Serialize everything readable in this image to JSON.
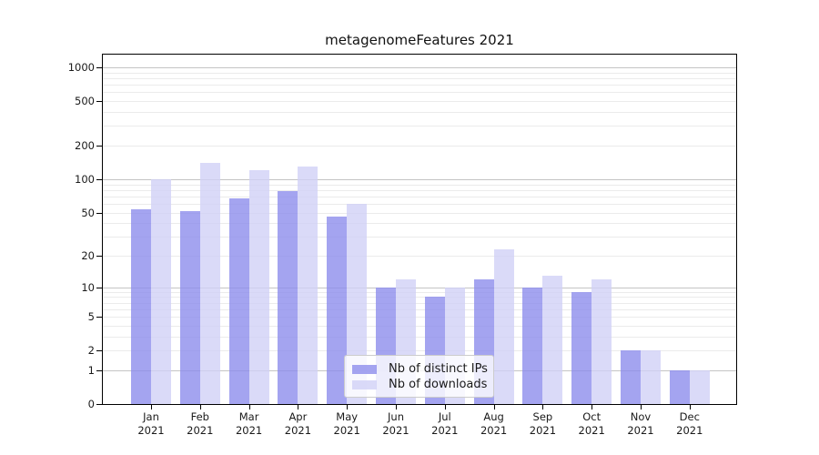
{
  "title": "metagenomeFeatures 2021",
  "chart_data": {
    "type": "bar",
    "title": "metagenomeFeatures 2021",
    "categories": [
      "Jan 2021",
      "Feb 2021",
      "Mar 2021",
      "Apr 2021",
      "May 2021",
      "Jun 2021",
      "Jul 2021",
      "Aug 2021",
      "Sep 2021",
      "Oct 2021",
      "Nov 2021",
      "Dec 2021"
    ],
    "series": [
      {
        "name": "Nb of distinct IPs",
        "color": "#a4a4ec",
        "values": [
          53,
          51,
          67,
          78,
          46,
          10,
          8,
          12,
          10,
          9,
          2,
          1
        ]
      },
      {
        "name": "Nb of downloads",
        "color": "#dadaf8",
        "values": [
          100,
          140,
          120,
          130,
          60,
          12,
          10,
          23,
          13,
          12,
          2,
          1
        ]
      }
    ],
    "xlabel": "",
    "ylabel": "",
    "yscale": "log(1+v)",
    "ytick_values": [
      0,
      1,
      2,
      5,
      10,
      20,
      50,
      100,
      200,
      500,
      1000
    ],
    "ytick_labels": [
      "0",
      "1",
      "2",
      "5",
      "10",
      "20",
      "50",
      "100",
      "200",
      "500",
      "1000"
    ],
    "ylim": [
      0,
      1300
    ],
    "grid": {
      "major": "on",
      "minor": "on",
      "orientation": "horizontal"
    },
    "legend_position": "inside lower-center-right"
  },
  "style": {
    "series_fill": [
      "rgba(141,141,236,0.8)",
      "rgba(209,209,246,0.8)"
    ],
    "series_solid": [
      "#a4a4ec",
      "#dadaf8"
    ],
    "grid_major_color": "#c4c4c4",
    "grid_minor_color": "#ebebeb",
    "spine_color": "#000000",
    "text_color": "#1a1a1a",
    "legend_border_color": "#cccccc"
  }
}
